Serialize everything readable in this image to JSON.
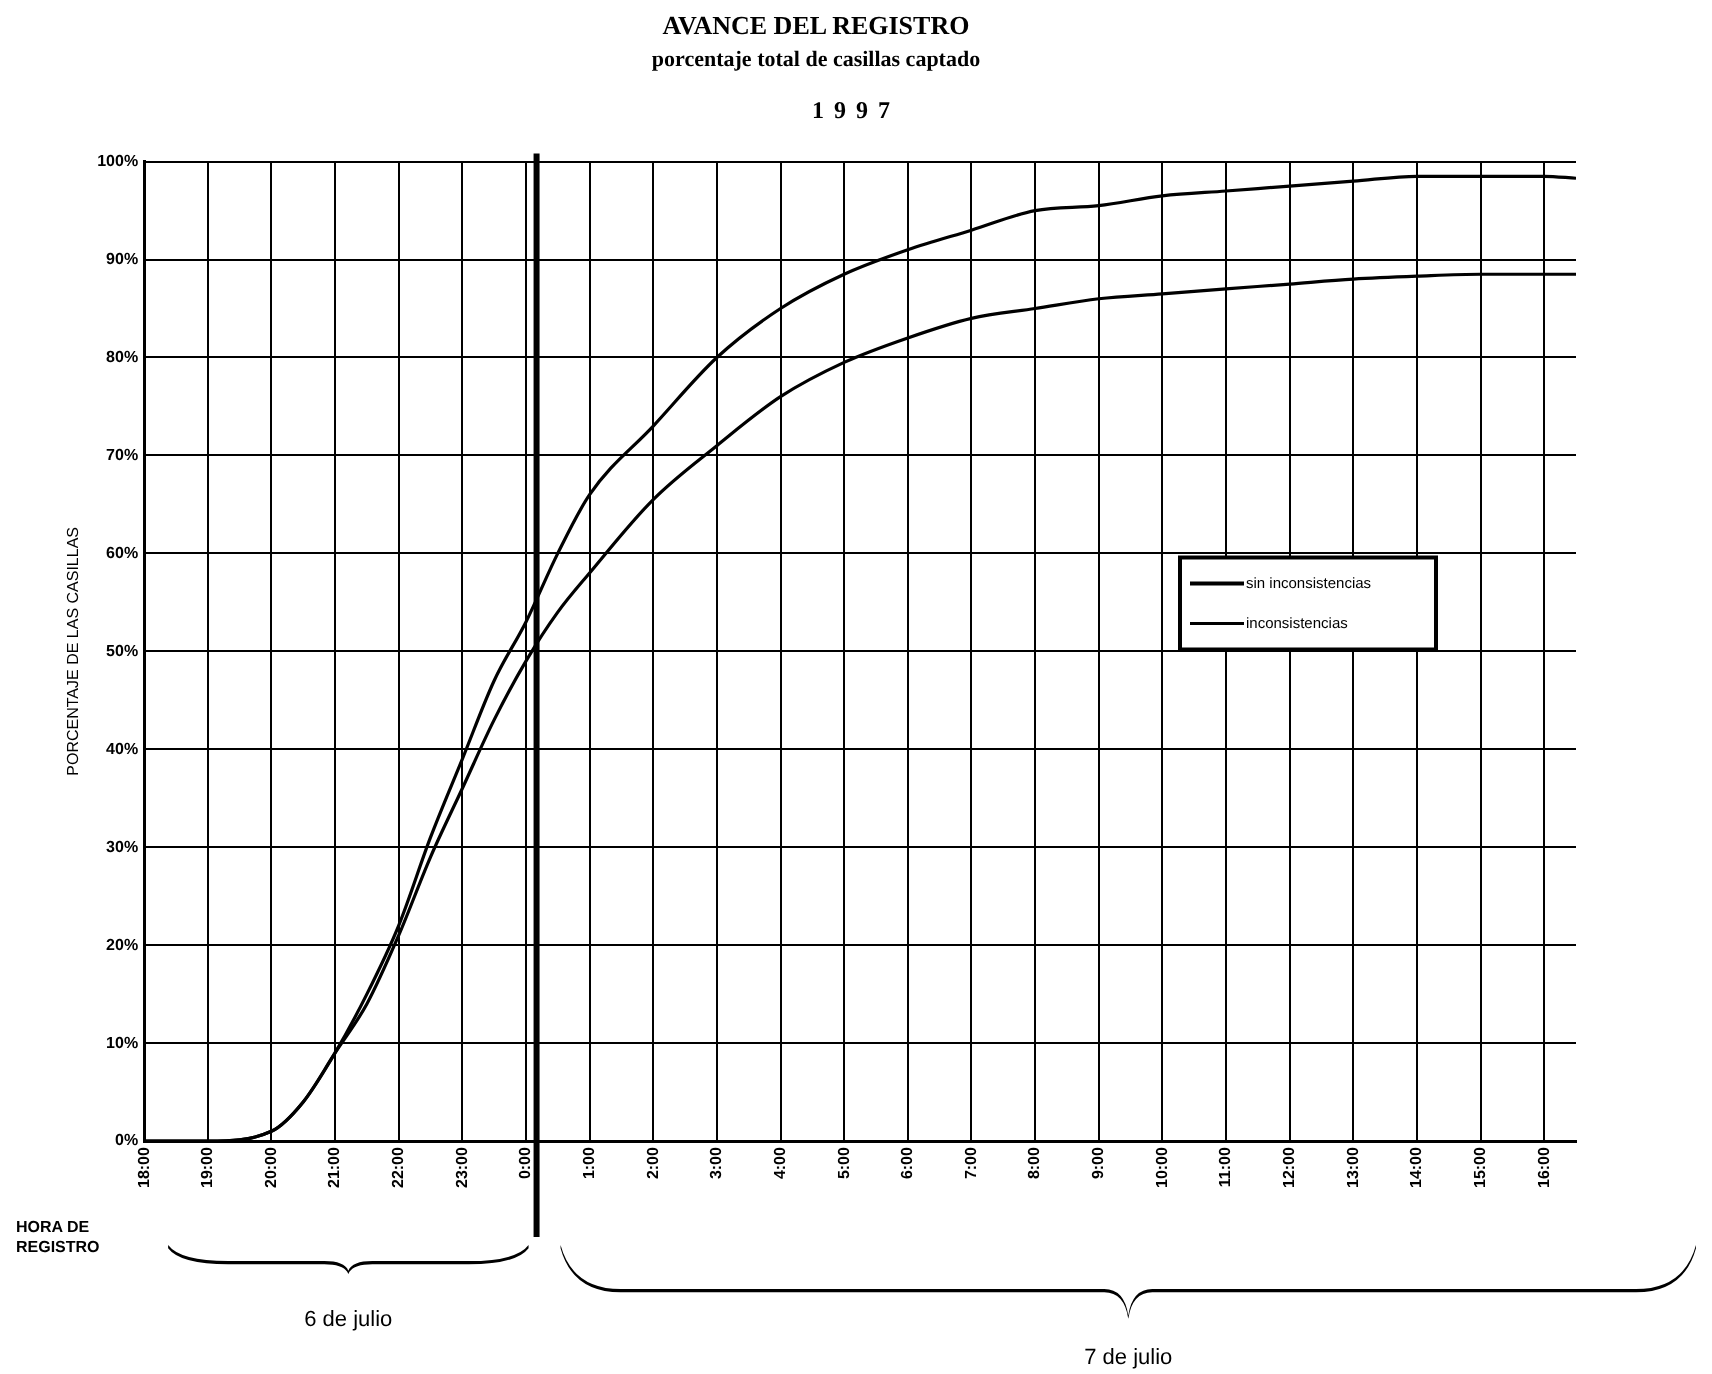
{
  "chart_data": {
    "type": "line",
    "title": "AVANCE DEL REGISTRO",
    "subtitle": "porcentaje total de casillas captado",
    "ylabel": "PORCENTAJE DE LAS CASILLAS",
    "annotations": [
      "1997",
      "HORA DE REGISTRO",
      "6 de julio",
      "7 de julio"
    ],
    "x": [
      "1997-07-06T18:00",
      "1997-07-06T19:00",
      "1997-07-06T20:00",
      "1997-07-06T20:30",
      "1997-07-06T21:00",
      "1997-07-06T21:30",
      "1997-07-06T22:00",
      "1997-07-06T22:30",
      "1997-07-06T23:00",
      "1997-07-06T23:30",
      "1997-07-07T00:00",
      "1997-07-07T00:30",
      "1997-07-07T01:00",
      "1997-07-07T02:00",
      "1997-07-07T03:00",
      "1997-07-07T04:00",
      "1997-07-07T05:00",
      "1997-07-07T06:00",
      "1997-07-07T07:00",
      "1997-07-07T08:00",
      "1997-07-07T09:00",
      "1997-07-07T10:00",
      "1997-07-07T11:00",
      "1997-07-07T12:00",
      "1997-07-07T13:00",
      "1997-07-07T14:00",
      "1997-07-07T15:00",
      "1997-07-07T16:00",
      "1997-07-07T16:30"
    ],
    "series": [
      {
        "name": "sin inconsistencias",
        "color": "#000000",
        "values": [
          0,
          0,
          1,
          4,
          9,
          15,
          22,
          31,
          39,
          47,
          53,
          60,
          66,
          73,
          80,
          85,
          88.5,
          91,
          93,
          95,
          95.5,
          96.5,
          97,
          97.5,
          98,
          98.5,
          98.5,
          98.5,
          98.3
        ]
      },
      {
        "name": "inconsistencias",
        "color": "#000000",
        "values": [
          0,
          0,
          1,
          4,
          9,
          14,
          21,
          29,
          36,
          43,
          49,
          54,
          58,
          65.5,
          71,
          76,
          79.5,
          82,
          84,
          85,
          86,
          86.5,
          87,
          87.5,
          88,
          88.3,
          88.5,
          88.5,
          88.5
        ]
      }
    ],
    "xlim": [
      "1997-07-06T18:00",
      "1997-07-07T16:30"
    ],
    "xticks": [
      {
        "value": "1997-07-06T18:00",
        "label": "18:00"
      },
      {
        "value": "1997-07-06T19:00",
        "label": "19:00"
      },
      {
        "value": "1997-07-06T20:00",
        "label": "20:00"
      },
      {
        "value": "1997-07-06T21:00",
        "label": "21:00"
      },
      {
        "value": "1997-07-06T22:00",
        "label": "22:00"
      },
      {
        "value": "1997-07-06T23:00",
        "label": "23:00"
      },
      {
        "value": "1997-07-07T00:00",
        "label": "0:00"
      },
      {
        "value": "1997-07-07T01:00",
        "label": "1:00"
      },
      {
        "value": "1997-07-07T02:00",
        "label": "2:00"
      },
      {
        "value": "1997-07-07T03:00",
        "label": "3:00"
      },
      {
        "value": "1997-07-07T04:00",
        "label": "4:00"
      },
      {
        "value": "1997-07-07T05:00",
        "label": "5:00"
      },
      {
        "value": "1997-07-07T06:00",
        "label": "6:00"
      },
      {
        "value": "1997-07-07T07:00",
        "label": "7:00"
      },
      {
        "value": "1997-07-07T08:00",
        "label": "8:00"
      },
      {
        "value": "1997-07-07T09:00",
        "label": "9:00"
      },
      {
        "value": "1997-07-07T10:00",
        "label": "10:00"
      },
      {
        "value": "1997-07-07T11:00",
        "label": "11:00"
      },
      {
        "value": "1997-07-07T12:00",
        "label": "12:00"
      },
      {
        "value": "1997-07-07T13:00",
        "label": "13:00"
      },
      {
        "value": "1997-07-07T14:00",
        "label": "14:00"
      },
      {
        "value": "1997-07-07T15:00",
        "label": "15:00"
      },
      {
        "value": "1997-07-07T16:00",
        "label": "16:00"
      }
    ],
    "ylim": [
      0,
      100
    ],
    "yticks": [
      {
        "value": 0,
        "label": "0%"
      },
      {
        "value": 10,
        "label": "10%"
      },
      {
        "value": 20,
        "label": "20%"
      },
      {
        "value": 30,
        "label": "30%"
      },
      {
        "value": 40,
        "label": "40%"
      },
      {
        "value": 50,
        "label": "50%"
      },
      {
        "value": 60,
        "label": "60%"
      },
      {
        "value": 70,
        "label": "70%"
      },
      {
        "value": 80,
        "label": "80%"
      },
      {
        "value": 90,
        "label": "90%"
      },
      {
        "value": 100,
        "label": "100%"
      }
    ],
    "ref_lines": [
      {
        "axis": "x",
        "value": "1997-07-07T00:10",
        "color": "#000000"
      }
    ],
    "grid": true,
    "legend": "right",
    "marker": "none",
    "line_style": "solid"
  }
}
